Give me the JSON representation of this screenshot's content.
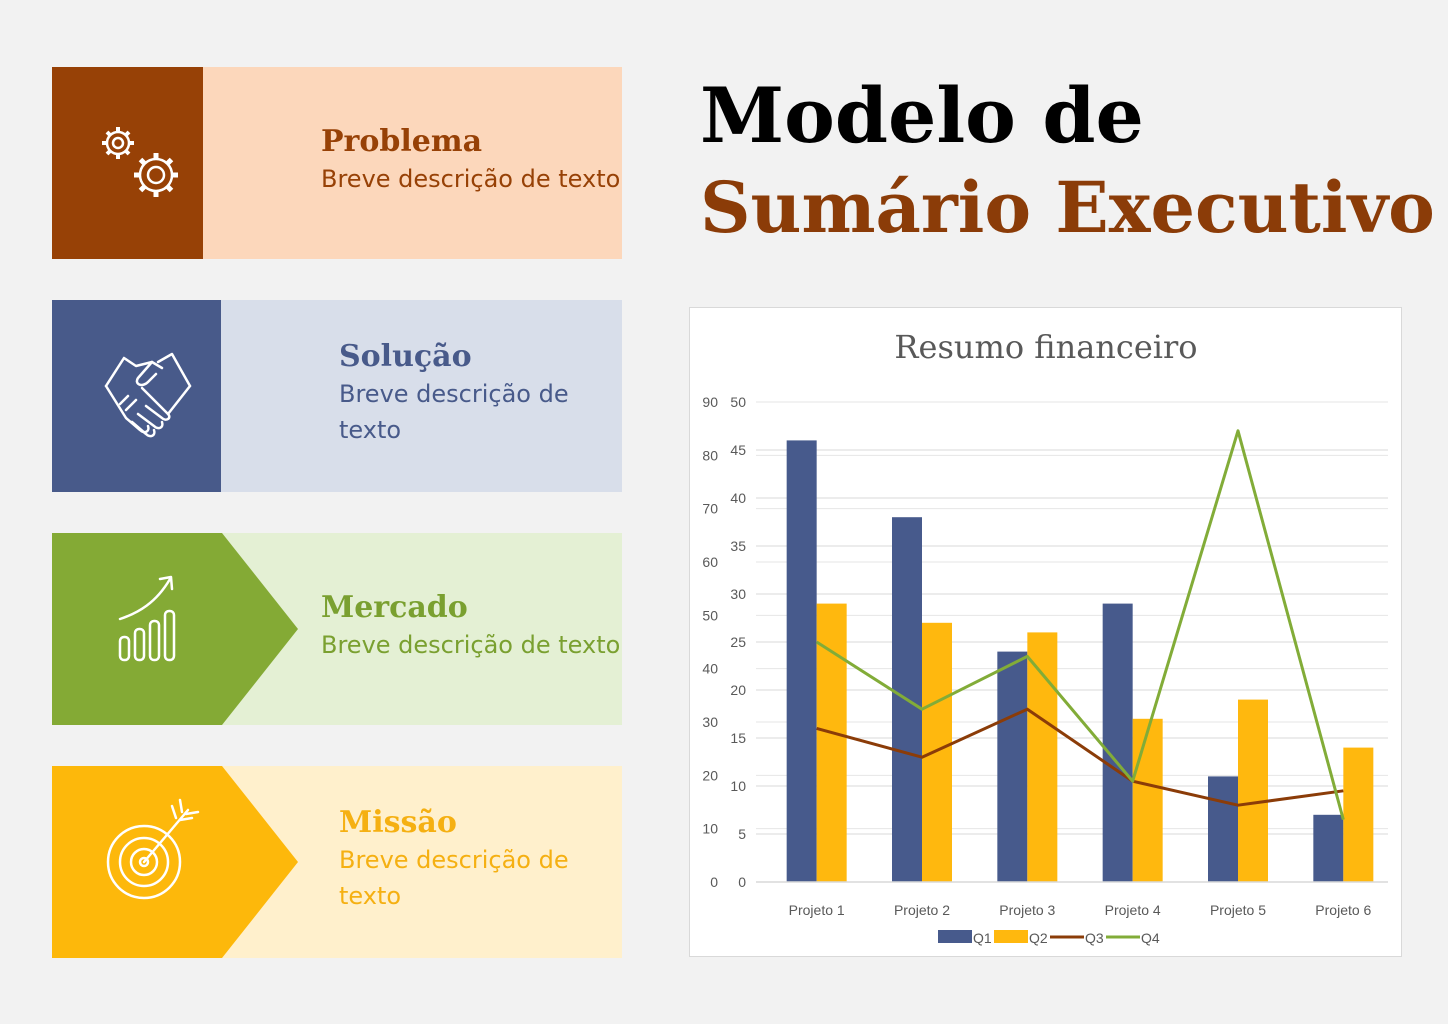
{
  "page": {
    "title_line1": "Modelo de",
    "title_line2": "Sumário Executivo"
  },
  "cards": [
    {
      "title": "Problema",
      "desc": "Breve descrição de texto",
      "icon": "gears-icon",
      "dark": "#974106",
      "light": "#fcd7bb",
      "text": "#974106"
    },
    {
      "title": "Solução",
      "desc": "Breve descrição de texto",
      "icon": "handshake-icon",
      "dark": "#485a8a",
      "light": "#d8deea",
      "text": "#485a8a"
    },
    {
      "title": "Mercado",
      "desc": "Breve descrição de texto",
      "icon": "growth-chart-icon",
      "dark": "#84aa35",
      "light": "#e4f0d4",
      "text": "#7aa030"
    },
    {
      "title": "Missão",
      "desc": "Breve descrição de texto",
      "icon": "target-icon",
      "dark": "#fdb80b",
      "light": "#fff0cc",
      "text": "#f5b012"
    }
  ],
  "chart_data": {
    "type": "bar",
    "title": "Resumo financeiro",
    "categories": [
      "Projeto 1",
      "Projeto 2",
      "Projeto 3",
      "Projeto 4",
      "Projeto 5",
      "Projeto 6"
    ],
    "series": [
      {
        "name": "Q1",
        "kind": "bar",
        "axis": "left",
        "color": "#475a8c",
        "values": [
          46,
          38,
          24,
          29,
          11,
          7
        ]
      },
      {
        "name": "Q2",
        "kind": "bar",
        "axis": "left",
        "color": "#ffb80e",
        "values": [
          29,
          27,
          26,
          17,
          19,
          14
        ]
      },
      {
        "name": "Q3",
        "kind": "line",
        "axis": "left",
        "color": "#8b3c08",
        "values": [
          16,
          13,
          18,
          10.5,
          8,
          9.5
        ]
      },
      {
        "name": "Q4",
        "kind": "line",
        "axis": "left",
        "color": "#82ac38",
        "values": [
          25,
          18,
          23.5,
          10.5,
          47,
          6.5
        ]
      }
    ],
    "y_left": {
      "range": [
        0,
        50
      ],
      "ticks": [
        "0",
        "5",
        "10",
        "15",
        "20",
        "25",
        "30",
        "35",
        "40",
        "45",
        "50"
      ]
    },
    "y_right": {
      "range": [
        0,
        90
      ],
      "ticks": [
        "0",
        "10",
        "20",
        "30",
        "40",
        "50",
        "60",
        "70",
        "80",
        "90"
      ]
    },
    "grid": true,
    "legend": "bottom"
  }
}
